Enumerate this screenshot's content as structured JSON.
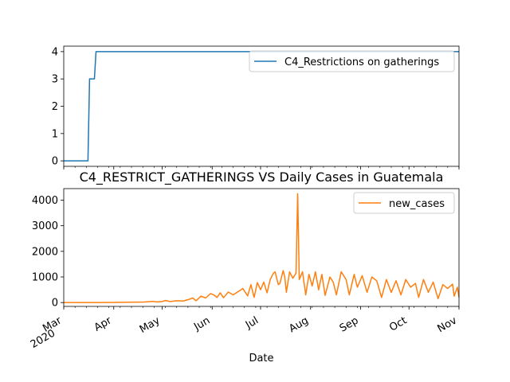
{
  "chart_data": [
    {
      "type": "line",
      "title": "",
      "xlabel": "",
      "ylabel": "",
      "ylim": [
        -0.2,
        4.2
      ],
      "yticks": [
        0,
        1,
        2,
        3,
        4
      ],
      "legend": "top-right",
      "x_range": [
        "2020-03-01",
        "2020-11-01"
      ],
      "series": [
        {
          "name": "C4_Restrictions on gatherings",
          "color": "#1f77b4",
          "step_points": [
            [
              "2020-03-01",
              0
            ],
            [
              "2020-03-16",
              0
            ],
            [
              "2020-03-17",
              3
            ],
            [
              "2020-03-20",
              3
            ],
            [
              "2020-03-21",
              4
            ],
            [
              "2020-11-01",
              4
            ]
          ]
        }
      ]
    },
    {
      "type": "line",
      "title": "C4_RESTRICT_GATHERINGS VS Daily Cases in Guatemala",
      "xlabel": "Date",
      "ylabel": "",
      "ylim": [
        -150,
        4450
      ],
      "yticks": [
        0,
        1000,
        2000,
        3000,
        4000
      ],
      "legend": "top-right",
      "x_range": [
        "2020-03-01",
        "2020-11-01"
      ],
      "xticks": [
        {
          "date": "2020-03-01",
          "label": "Mar",
          "sublabel": "2020"
        },
        {
          "date": "2020-04-01",
          "label": "Apr"
        },
        {
          "date": "2020-05-01",
          "label": "May"
        },
        {
          "date": "2020-06-01",
          "label": "Jun"
        },
        {
          "date": "2020-07-01",
          "label": "Jul"
        },
        {
          "date": "2020-08-01",
          "label": "Aug"
        },
        {
          "date": "2020-09-01",
          "label": "Sep"
        },
        {
          "date": "2020-10-01",
          "label": "Oct"
        },
        {
          "date": "2020-11-01",
          "label": "Nov"
        }
      ],
      "series": [
        {
          "name": "new_cases",
          "color": "#ff7f0e",
          "points": [
            [
              "2020-03-01",
              0
            ],
            [
              "2020-03-15",
              0
            ],
            [
              "2020-04-01",
              5
            ],
            [
              "2020-04-10",
              15
            ],
            [
              "2020-04-20",
              20
            ],
            [
              "2020-04-25",
              45
            ],
            [
              "2020-04-28",
              25
            ],
            [
              "2020-05-01",
              40
            ],
            [
              "2020-05-03",
              80
            ],
            [
              "2020-05-06",
              40
            ],
            [
              "2020-05-10",
              70
            ],
            [
              "2020-05-14",
              60
            ],
            [
              "2020-05-18",
              130
            ],
            [
              "2020-05-20",
              180
            ],
            [
              "2020-05-22",
              70
            ],
            [
              "2020-05-25",
              250
            ],
            [
              "2020-05-28",
              180
            ],
            [
              "2020-05-31",
              350
            ],
            [
              "2020-06-02",
              300
            ],
            [
              "2020-06-04",
              200
            ],
            [
              "2020-06-06",
              380
            ],
            [
              "2020-06-08",
              190
            ],
            [
              "2020-06-11",
              410
            ],
            [
              "2020-06-14",
              300
            ],
            [
              "2020-06-17",
              420
            ],
            [
              "2020-06-20",
              550
            ],
            [
              "2020-06-23",
              260
            ],
            [
              "2020-06-25",
              700
            ],
            [
              "2020-06-27",
              200
            ],
            [
              "2020-06-29",
              780
            ],
            [
              "2020-07-01",
              500
            ],
            [
              "2020-07-03",
              800
            ],
            [
              "2020-07-05",
              380
            ],
            [
              "2020-07-07",
              900
            ],
            [
              "2020-07-09",
              1150
            ],
            [
              "2020-07-10",
              1200
            ],
            [
              "2020-07-12",
              700
            ],
            [
              "2020-07-13",
              750
            ],
            [
              "2020-07-15",
              1250
            ],
            [
              "2020-07-16",
              1000
            ],
            [
              "2020-07-17",
              400
            ],
            [
              "2020-07-19",
              1200
            ],
            [
              "2020-07-21",
              950
            ],
            [
              "2020-07-23",
              1150
            ],
            [
              "2020-07-24",
              4250
            ],
            [
              "2020-07-25",
              900
            ],
            [
              "2020-07-27",
              1200
            ],
            [
              "2020-07-29",
              300
            ],
            [
              "2020-07-31",
              1100
            ],
            [
              "2020-08-02",
              650
            ],
            [
              "2020-08-04",
              1200
            ],
            [
              "2020-08-06",
              500
            ],
            [
              "2020-08-08",
              1100
            ],
            [
              "2020-08-10",
              280
            ],
            [
              "2020-08-13",
              1000
            ],
            [
              "2020-08-15",
              800
            ],
            [
              "2020-08-17",
              300
            ],
            [
              "2020-08-20",
              1200
            ],
            [
              "2020-08-23",
              900
            ],
            [
              "2020-08-25",
              300
            ],
            [
              "2020-08-28",
              1100
            ],
            [
              "2020-08-30",
              600
            ],
            [
              "2020-09-02",
              1050
            ],
            [
              "2020-09-05",
              400
            ],
            [
              "2020-09-08",
              1000
            ],
            [
              "2020-09-11",
              850
            ],
            [
              "2020-09-14",
              200
            ],
            [
              "2020-09-17",
              900
            ],
            [
              "2020-09-20",
              400
            ],
            [
              "2020-09-23",
              850
            ],
            [
              "2020-09-26",
              300
            ],
            [
              "2020-09-29",
              900
            ],
            [
              "2020-10-02",
              600
            ],
            [
              "2020-10-05",
              750
            ],
            [
              "2020-10-07",
              200
            ],
            [
              "2020-10-10",
              900
            ],
            [
              "2020-10-13",
              400
            ],
            [
              "2020-10-16",
              800
            ],
            [
              "2020-10-19",
              150
            ],
            [
              "2020-10-22",
              700
            ],
            [
              "2020-10-25",
              550
            ],
            [
              "2020-10-28",
              720
            ],
            [
              "2020-10-29",
              250
            ],
            [
              "2020-10-31",
              600
            ],
            [
              "2020-11-01",
              200
            ]
          ]
        }
      ]
    }
  ]
}
